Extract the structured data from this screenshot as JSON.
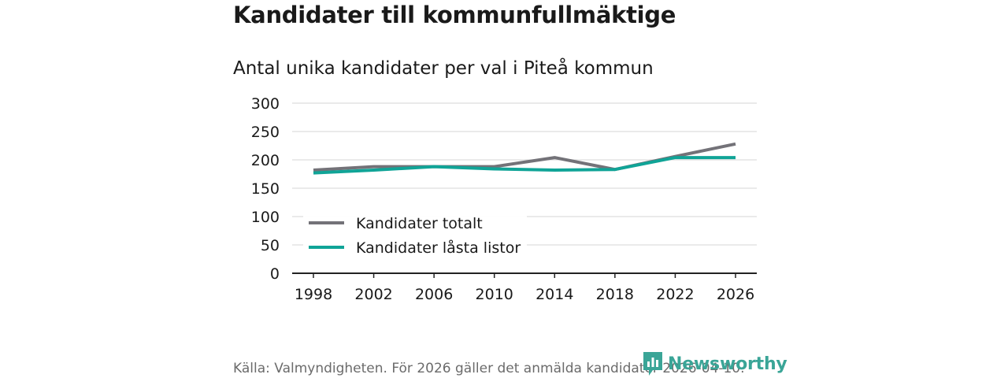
{
  "title": "Kandidater till kommunfullmäktige",
  "subtitle": "Antal unika kandidater per val i Piteå kommun",
  "source": "Källa: Valmyndigheten. För 2026 gäller det anmälda kandidater 2026-04-10.",
  "brand": {
    "name": "Newsworthy",
    "icon": "newsworthy-logo-icon"
  },
  "colors": {
    "totalt": "#737278",
    "lasta": "#10a497",
    "grid": "#dddddd",
    "axis": "#222222"
  },
  "chart_data": {
    "type": "line",
    "title": "Antal unika kandidater per val i Piteå kommun",
    "xlabel": "",
    "ylabel": "",
    "categories": [
      "1998",
      "2002",
      "2006",
      "2010",
      "2014",
      "2018",
      "2022",
      "2026"
    ],
    "yticks": [
      "0",
      "50",
      "100",
      "150",
      "200",
      "250",
      "300"
    ],
    "ylim": [
      0,
      300
    ],
    "grid": true,
    "legend_position": "lower-left",
    "series": [
      {
        "name": "Kandidater totalt",
        "color": "#737278",
        "values": [
          182,
          188,
          188,
          188,
          204,
          183,
          206,
          228
        ]
      },
      {
        "name": "Kandidater låsta listor",
        "color": "#10a497",
        "values": [
          177,
          182,
          188,
          184,
          182,
          183,
          204,
          204
        ]
      }
    ]
  }
}
